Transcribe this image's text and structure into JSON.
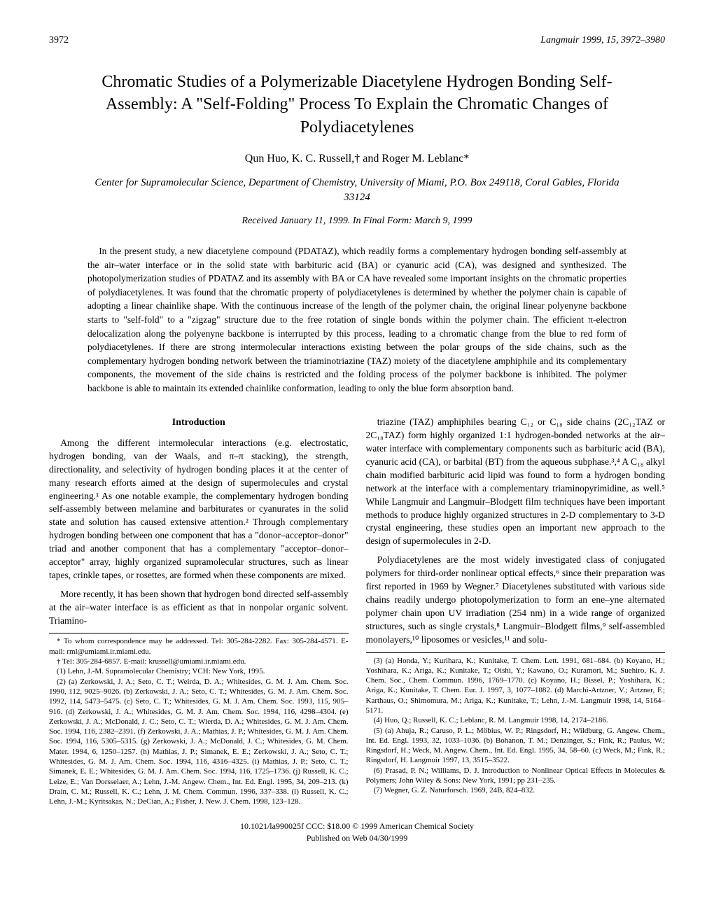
{
  "header": {
    "page_number": "3972",
    "journal": "Langmuir 1999, 15, 3972–3980"
  },
  "title": "Chromatic Studies of a Polymerizable Diacetylene Hydrogen Bonding Self-Assembly: A \"Self-Folding\" Process To Explain the Chromatic Changes of Polydiacetylenes",
  "authors": "Qun Huo, K. C. Russell,† and Roger M. Leblanc*",
  "affiliation": "Center for Supramolecular Science, Department of Chemistry, University of Miami, P.O. Box 249118, Coral Gables, Florida 33124",
  "received": "Received January 11, 1999. In Final Form: March 9, 1999",
  "abstract": "In the present study, a new diacetylene compound (PDATAZ), which readily forms a complementary hydrogen bonding self-assembly at the air–water interface or in the solid state with barbituric acid (BA) or cyanuric acid (CA), was designed and synthesized. The photopolymerization studies of PDATAZ and its assembly with BA or CA have revealed some important insights on the chromatic properties of polydiacetylenes. It was found that the chromatic property of polydiacetylenes is determined by whether the polymer chain is capable of adopting a linear chainlike shape. With the continuous increase of the length of the polymer chain, the original linear polyenyne backbone starts to \"self-fold\" to a \"zigzag\" structure due to the free rotation of single bonds within the polymer chain. The efficient π-electron delocalization along the polyenyne backbone is interrupted by this process, leading to a chromatic change from the blue to red form of polydiacetylenes. If there are strong intermolecular interactions existing between the polar groups of the side chains, such as the complementary hydrogen bonding network between the triaminotriazine (TAZ) moiety of the diacetylene amphiphile and its complementary components, the movement of the side chains is restricted and the folding process of the polymer backbone is inhibited. The polymer backbone is able to maintain its extended chainlike conformation, leading to only the blue form absorption band.",
  "intro_heading": "Introduction",
  "col1_p1": "Among the different intermolecular interactions (e.g. electrostatic, hydrogen bonding, van der Waals, and π–π stacking), the strength, directionality, and selectivity of hydrogen bonding places it at the center of many research efforts aimed at the design of supermolecules and crystal engineering.¹ As one notable example, the complementary hydrogen bonding self-assembly between melamine and barbiturates or cyanurates in the solid state and solution has caused extensive attention.² Through complementary hydrogen bonding between one component that has a \"donor–acceptor–donor\" triad and another component that has a complementary \"acceptor–donor–acceptor\" array, highly organized supramolecular structures, such as linear tapes, crinkle tapes, or rosettes, are formed when these components are mixed.",
  "col1_p2": "More recently, it has been shown that hydrogen bond directed self-assembly at the air–water interface is as efficient as that in nonpolar organic solvent. Triamino-",
  "col2_p1": "triazine (TAZ) amphiphiles bearing C₁₂ or C₁₈ side chains (2C₁₂TAZ or 2C₁₈TAZ) form highly organized 1:1 hydrogen-bonded networks at the air–water interface with complementary components such as barbituric acid (BA), cyanuric acid (CA), or barbital (BT) from the aqueous subphase.³,⁴ A C₁₈ alkyl chain modified barbituric acid lipid was found to form a hydrogen bonding network at the interface with a complementary triaminopyrimidine, as well.⁵ While Langmuir and Langmuir–Blodgett film techniques have been important methods to produce highly organized structures in 2-D complementary to 3-D crystal engineering, these studies open an important new approach to the design of supermolecules in 2-D.",
  "col2_p2": "Polydiacetylenes are the most widely investigated class of conjugated polymers for third-order nonlinear optical effects,⁶ since their preparation was first reported in 1969 by Wegner.⁷ Diacetylenes substituted with various side chains readily undergo photopolymerization to form an ene–yne alternated polymer chain upon UV irradiation (254 nm) in a wide range of organized structures, such as single crystals,⁸ Langmuir–Blodgett films,⁹ self-assembled monolayers,¹⁰ liposomes or vesicles,¹¹ and solu-",
  "footnotes_left": [
    "* To whom correspondence may be addressed. Tel: 305-284-2282. Fax: 305-284-4571. E-mail: rml@umiami.ir.miami.edu.",
    "† Tel: 305-284-6857. E-mail: krussell@umiami.ir.miami.edu.",
    "(1) Lehn, J.-M. Supramolecular Chemistry; VCH: New York, 1995.",
    "(2) (a) Zerkowski, J. A.; Seto, C. T.; Weirda, D. A.; Whitesides, G. M. J. Am. Chem. Soc. 1990, 112, 9025–9026. (b) Zerkowski, J. A.; Seto, C. T.; Whitesides, G. M. J. Am. Chem. Soc. 1992, 114, 5473–5475. (c) Seto, C. T.; Whitesides, G. M. J. Am. Chem. Soc. 1993, 115, 905–916. (d) Zerkowski, J. A.; Whitesides, G. M. J. Am. Chem. Soc. 1994, 116, 4298–4304. (e) Zerkowski, J. A.; McDonald, J. C.; Seto, C. T.; Wierda, D. A.; Whitesides, G. M. J. Am. Chem. Soc. 1994, 116, 2382–2391. (f) Zerkowski, J. A.; Mathias, J. P.; Whitesides, G. M. J. Am. Chem. Soc. 1994, 116, 5305–5315. (g) Zerkowski, J. A.; McDonald, J. C.; Whitesides, G. M. Chem. Mater. 1994, 6, 1250–1257. (h) Mathias, J. P.; Simanek, E. E.; Zerkowski, J. A.; Seto, C. T.; Whitesides, G. M. J. Am. Chem. Soc. 1994, 116, 4316–4325. (i) Mathias, J. P.; Seto, C. T.; Simanek, E. E.; Whitesides, G. M. J. Am. Chem. Soc. 1994, 116, 1725–1736. (j) Russell, K. C.; Leize, E.; Van Dorsselaer, A.; Lehn, J.-M. Angew. Chem., Int. Ed. Engl. 1995, 34, 209–213. (k) Drain, C. M.; Russell, K. C.; Lehn, J. M. Chem. Commun. 1996, 337–338. (l) Russell, K. C.; Lehn, J.-M.; Kyritsakas, N.; DeCian, A.; Fisher, J. New. J. Chem. 1998, 123–128."
  ],
  "footnotes_right": [
    "(3) (a) Honda, Y.; Kurihara, K.; Kunitake, T. Chem. Lett. 1991, 681–684. (b) Koyano, H.; Yoshihara, K.; Ariga, K.; Kunitake, T.; Oishi, Y.; Kawano, O.; Kuramori, M.; Suehiro, K. J. Chem. Soc., Chem. Commun. 1996, 1769–1770. (c) Koyano, H.; Bissel, P.; Yoshihara, K.; Ariga, K.; Kunitake, T. Chem. Eur. J. 1997, 3, 1077–1082. (d) Marchi-Artzner, V.; Artzner, F.; Karthaus, O.; Shimomura, M.; Ariga, K.; Kunitake, T.; Lehn, J.-M. Langmuir 1998, 14, 5164–5171.",
    "(4) Huo, Q.; Russell, K. C.; Leblanc, R. M. Langmuir 1998, 14, 2174–2186.",
    "(5) (a) Ahuja, R.; Caruso, P. L.; Möbius, W. P.; Ringsdorf, H.; Wildburg, G. Angew. Chem., Int. Ed. Engl. 1993, 32, 1033–1036. (b) Bohanon, T. M.; Denzinger, S.; Fink, R.; Paulus, W.; Ringsdorf, H.; Weck, M. Angew. Chem., Int. Ed. Engl. 1995, 34, 58–60. (c) Weck, M.; Fink, R.; Ringsdorf, H. Langmuir 1997, 13, 3515–3522.",
    "(6) Prasad, P. N.; Williams, D. J. Introduction to Nonlinear Optical Effects in Molecules & Polymers; John Wiley & Sons: New York, 1991; pp 231–235.",
    "(7) Wegner, G. Z. Naturforsch. 1969, 24B, 824–832."
  ],
  "footer_line1": "10.1021/la990025f CCC: $18.00    © 1999 American Chemical Society",
  "footer_line2": "Published on Web 04/30/1999"
}
